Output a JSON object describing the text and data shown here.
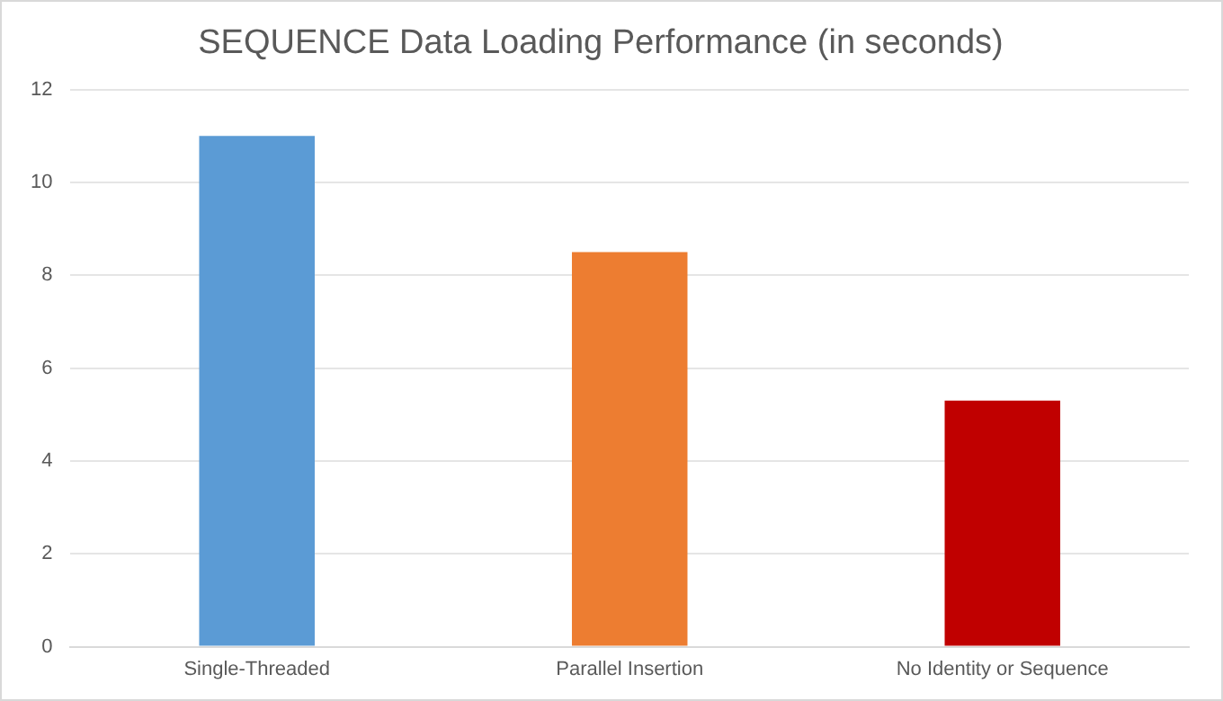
{
  "chart_data": {
    "type": "bar",
    "title": "SEQUENCE Data Loading Performance (in seconds)",
    "categories": [
      "Single-Threaded",
      "Parallel Insertion",
      "No Identity or Sequence"
    ],
    "values": [
      11,
      8.5,
      5.3
    ],
    "colors": [
      "#5b9bd5",
      "#ed7d31",
      "#c00000"
    ],
    "ylim": [
      0,
      12
    ],
    "yticks": [
      0,
      2,
      4,
      6,
      8,
      10,
      12
    ],
    "grid": "y"
  }
}
